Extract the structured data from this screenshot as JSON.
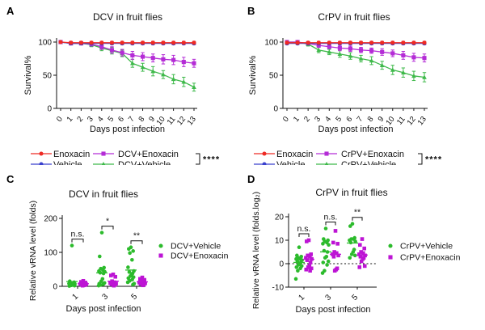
{
  "figure": {
    "panel_labels": [
      "A",
      "B",
      "C",
      "D"
    ]
  },
  "chart_data": [
    {
      "id": "A",
      "type": "line",
      "title": "DCV in fruit flies",
      "ylabel": "Survival%",
      "xlabel": "Days post infection",
      "x": [
        0,
        1,
        2,
        3,
        4,
        5,
        6,
        7,
        8,
        9,
        10,
        11,
        12,
        13
      ],
      "yticks": [
        0,
        50,
        100
      ],
      "ylim": [
        0,
        100
      ],
      "series": [
        {
          "name": "Enoxacin",
          "color": "#ee2a24",
          "marker": "circle",
          "values": [
            100,
            99,
            99,
            99,
            99,
            99,
            99,
            99,
            99,
            99,
            99,
            99,
            99,
            99
          ],
          "err": [
            0,
            2,
            2,
            2,
            2,
            2,
            2,
            2,
            2,
            2,
            2,
            2,
            2,
            2
          ]
        },
        {
          "name": "Vehicle",
          "color": "#3a41cd",
          "marker": "circle",
          "values": [
            100,
            98,
            98,
            98,
            98,
            98,
            98,
            98,
            98,
            98,
            98,
            98,
            98,
            98
          ],
          "err": [
            0,
            2,
            2,
            2,
            2,
            2,
            2,
            2,
            2,
            2,
            2,
            2,
            2,
            2
          ]
        },
        {
          "name": "DCV+Enoxacin",
          "color": "#b42cd6",
          "marker": "square",
          "values": [
            100,
            98,
            98,
            97,
            93,
            88,
            84,
            80,
            78,
            76,
            74,
            73,
            70,
            68
          ],
          "err": [
            0,
            2,
            2,
            3,
            4,
            5,
            5,
            6,
            6,
            6,
            7,
            7,
            7,
            6
          ]
        },
        {
          "name": "DCV+Vehicle",
          "color": "#3eb94a",
          "marker": "triangle",
          "values": [
            100,
            98,
            98,
            96,
            91,
            87,
            83,
            68,
            62,
            56,
            51,
            44,
            40,
            32
          ],
          "err": [
            0,
            2,
            2,
            3,
            4,
            5,
            5,
            6,
            6,
            7,
            6,
            7,
            7,
            6
          ]
        }
      ],
      "legend": {
        "significance": "****"
      }
    },
    {
      "id": "B",
      "type": "line",
      "title": "CrPV in fruit flies",
      "ylabel": "Survival%",
      "xlabel": "Days post infection",
      "x": [
        0,
        1,
        2,
        3,
        4,
        5,
        6,
        7,
        8,
        9,
        10,
        11,
        12,
        13
      ],
      "yticks": [
        0,
        50,
        100
      ],
      "ylim": [
        0,
        100
      ],
      "series": [
        {
          "name": "Enoxacin",
          "color": "#ee2a24",
          "marker": "circle",
          "values": [
            99,
            99,
            99,
            99,
            99,
            99,
            99,
            99,
            99,
            99,
            99,
            99,
            99,
            99
          ],
          "err": [
            2,
            2,
            2,
            2,
            2,
            2,
            2,
            2,
            2,
            2,
            2,
            2,
            2,
            2
          ]
        },
        {
          "name": "Vehicle",
          "color": "#3a41cd",
          "marker": "circle",
          "values": [
            98,
            98,
            98,
            98,
            98,
            98,
            98,
            98,
            98,
            98,
            98,
            98,
            98,
            98
          ],
          "err": [
            2,
            2,
            2,
            2,
            2,
            2,
            2,
            2,
            2,
            2,
            2,
            2,
            2,
            2
          ]
        },
        {
          "name": "CrPV+Enoxacin",
          "color": "#b42cd6",
          "marker": "square",
          "values": [
            100,
            100,
            98,
            95,
            93,
            91,
            90,
            88,
            87,
            85,
            83,
            80,
            77,
            76
          ],
          "err": [
            2,
            2,
            2,
            3,
            3,
            4,
            4,
            4,
            4,
            5,
            5,
            6,
            6,
            6
          ]
        },
        {
          "name": "CrPV+Vehicle",
          "color": "#3eb94a",
          "marker": "triangle",
          "values": [
            100,
            100,
            97,
            88,
            85,
            82,
            79,
            75,
            72,
            65,
            58,
            54,
            49,
            47
          ],
          "err": [
            2,
            2,
            3,
            4,
            4,
            5,
            5,
            5,
            6,
            6,
            7,
            7,
            7,
            7
          ]
        }
      ],
      "legend": {
        "significance": "****"
      }
    },
    {
      "id": "C",
      "type": "scatter",
      "title": "DCV in fruit flies",
      "ylabel": "Relative vRNA level (folds)",
      "xlabel": "Days post infection",
      "categories": [
        "1",
        "3",
        "5"
      ],
      "yticks": [
        0,
        100,
        200
      ],
      "ylim": [
        0,
        200
      ],
      "zero_line": false,
      "series": [
        {
          "name": "DCV+Vehicle",
          "color": "#2cbb2c",
          "marker": "circle",
          "points": {
            "1": [
              120,
              15,
              12,
              10,
              9,
              8,
              7,
              6,
              5,
              4,
              3,
              2,
              1,
              5,
              3
            ],
            "3": [
              158,
              88,
              55,
              52,
              48,
              45,
              43,
              40,
              38,
              22,
              15,
              10,
              8,
              6,
              4,
              2
            ],
            "5": [
              115,
              110,
              104,
              98,
              78,
              56,
              45,
              42,
              38,
              34,
              30,
              27,
              24,
              20,
              16,
              12,
              8,
              5
            ]
          }
        },
        {
          "name": "DCV+Enoxacin",
          "color": "#bd14d4",
          "marker": "square",
          "points": {
            "1": [
              16,
              13,
              11,
              9,
              8,
              7,
              6,
              5,
              4,
              3,
              2
            ],
            "3": [
              35,
              32,
              28,
              15,
              12,
              10,
              8,
              6,
              4,
              2
            ],
            "5": [
              26,
              22,
              19,
              16,
              13,
              11,
              9,
              7,
              5,
              3
            ]
          }
        }
      ],
      "significance": [
        {
          "category": "1",
          "label": "n.s."
        },
        {
          "category": "3",
          "label": "*"
        },
        {
          "category": "5",
          "label": "**"
        }
      ]
    },
    {
      "id": "D",
      "type": "scatter",
      "title": "CrPV in fruit flies",
      "ylabel": "Relative vRNA level (folds.log₂)",
      "xlabel": "Days post infection",
      "categories": [
        "1",
        "3",
        "5"
      ],
      "yticks": [
        -10,
        0,
        10,
        20
      ],
      "ylim": [
        -10,
        20
      ],
      "zero_line": true,
      "series": [
        {
          "name": "CrPV+Vehicle",
          "color": "#2cbb2c",
          "marker": "circle",
          "points": {
            "1": [
              7,
              3.5,
              3,
              2.5,
              2,
              2,
              1.5,
              1,
              0.5,
              0,
              -0.5,
              -1,
              -1.5,
              -2,
              -3,
              -6.5
            ],
            "3": [
              15,
              10.5,
              10,
              9.5,
              9,
              8.5,
              8,
              5.5,
              5,
              3,
              2.5,
              1,
              0.5,
              -0.5,
              -3,
              -4
            ],
            "5": [
              17,
              16,
              11,
              10.5,
              10.5,
              10,
              9.5,
              9,
              6,
              5,
              4,
              3.5,
              2.5
            ]
          }
        },
        {
          "name": "CrPV+Enoxacin",
          "color": "#bd14d4",
          "marker": "square",
          "points": {
            "1": [
              10,
              9.5,
              4,
              3.5,
              3,
              2.5,
              2,
              1.5,
              0.5,
              -1,
              -1.5,
              -2,
              -2.5,
              -3
            ],
            "3": [
              14,
              9,
              8.5,
              5,
              4.5,
              4,
              3.5,
              3,
              -2,
              -2.5,
              -3
            ],
            "5": [
              10.5,
              8,
              6.5,
              5,
              4.5,
              4,
              3.5,
              3,
              2.5,
              2,
              1,
              -1,
              -1.5
            ]
          }
        }
      ],
      "significance": [
        {
          "category": "1",
          "label": "n.s."
        },
        {
          "category": "3",
          "label": "n.s."
        },
        {
          "category": "5",
          "label": "**"
        }
      ]
    }
  ]
}
